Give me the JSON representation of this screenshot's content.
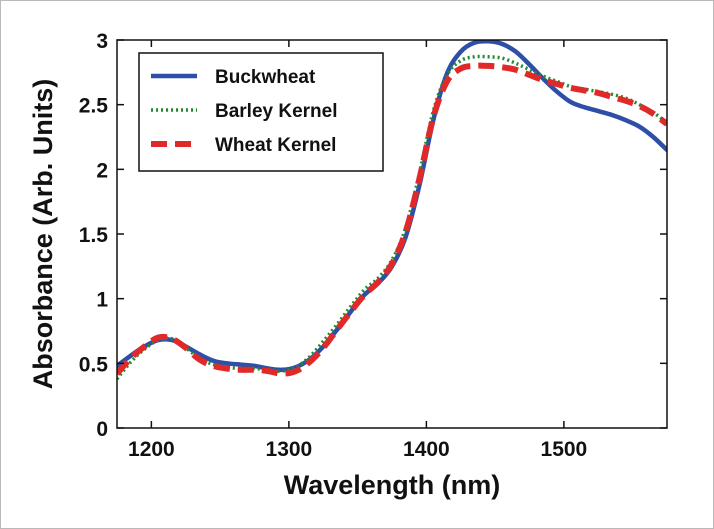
{
  "chart_data": {
    "type": "line",
    "title": "",
    "xlabel": "Wavelength (nm)",
    "ylabel": "Absorbance (Arb. Units)",
    "xlim": [
      1175,
      1575
    ],
    "ylim": [
      0,
      3
    ],
    "xticks": [
      1200,
      1300,
      1400,
      1500
    ],
    "xtick_labels": [
      "1200",
      "1300",
      "1400",
      "1500"
    ],
    "yticks": [
      0,
      0.5,
      1,
      1.5,
      2,
      2.5,
      3
    ],
    "ytick_labels": [
      "0",
      "0.5",
      "1",
      "1.5",
      "2",
      "2.5",
      "3"
    ],
    "grid": false,
    "legend_position": "top-left",
    "series": [
      {
        "name": "Buckwheat",
        "color": "#2e4fa8",
        "style": "solid",
        "x": [
          1175,
          1185,
          1195,
          1205,
          1215,
          1225,
          1235,
          1245,
          1255,
          1265,
          1275,
          1285,
          1295,
          1305,
          1315,
          1325,
          1335,
          1345,
          1355,
          1365,
          1375,
          1385,
          1395,
          1405,
          1415,
          1425,
          1435,
          1445,
          1455,
          1465,
          1475,
          1485,
          1495,
          1505,
          1515,
          1525,
          1535,
          1545,
          1555,
          1565,
          1575
        ],
        "y": [
          0.48,
          0.56,
          0.63,
          0.68,
          0.68,
          0.63,
          0.57,
          0.52,
          0.5,
          0.49,
          0.48,
          0.46,
          0.45,
          0.47,
          0.53,
          0.63,
          0.76,
          0.9,
          1.03,
          1.12,
          1.25,
          1.48,
          1.88,
          2.38,
          2.74,
          2.91,
          2.98,
          2.99,
          2.97,
          2.91,
          2.81,
          2.7,
          2.6,
          2.52,
          2.48,
          2.45,
          2.42,
          2.38,
          2.33,
          2.25,
          2.15
        ]
      },
      {
        "name": "Barley Kernel",
        "color": "#1f8a2e",
        "style": "dotted",
        "x": [
          1175,
          1185,
          1195,
          1205,
          1215,
          1225,
          1235,
          1245,
          1255,
          1265,
          1275,
          1285,
          1295,
          1305,
          1315,
          1325,
          1335,
          1345,
          1355,
          1365,
          1375,
          1385,
          1395,
          1405,
          1415,
          1425,
          1435,
          1445,
          1455,
          1465,
          1475,
          1485,
          1495,
          1505,
          1515,
          1525,
          1535,
          1545,
          1555,
          1565,
          1575
        ],
        "y": [
          0.38,
          0.51,
          0.61,
          0.68,
          0.69,
          0.62,
          0.54,
          0.49,
          0.47,
          0.46,
          0.46,
          0.45,
          0.44,
          0.47,
          0.55,
          0.67,
          0.8,
          0.94,
          1.07,
          1.16,
          1.3,
          1.55,
          1.97,
          2.45,
          2.73,
          2.84,
          2.87,
          2.87,
          2.86,
          2.82,
          2.77,
          2.72,
          2.68,
          2.64,
          2.62,
          2.6,
          2.58,
          2.55,
          2.5,
          2.44,
          2.36
        ]
      },
      {
        "name": "Wheat Kernel",
        "color": "#e02a2a",
        "style": "dashed",
        "x": [
          1175,
          1185,
          1195,
          1205,
          1215,
          1225,
          1235,
          1245,
          1255,
          1265,
          1275,
          1285,
          1295,
          1305,
          1315,
          1325,
          1335,
          1345,
          1355,
          1365,
          1375,
          1385,
          1395,
          1405,
          1415,
          1425,
          1435,
          1445,
          1455,
          1465,
          1475,
          1485,
          1495,
          1505,
          1515,
          1525,
          1535,
          1545,
          1555,
          1565,
          1575
        ],
        "y": [
          0.42,
          0.54,
          0.63,
          0.7,
          0.69,
          0.62,
          0.53,
          0.48,
          0.46,
          0.45,
          0.45,
          0.44,
          0.42,
          0.44,
          0.51,
          0.62,
          0.76,
          0.9,
          1.03,
          1.13,
          1.27,
          1.52,
          1.93,
          2.4,
          2.68,
          2.78,
          2.8,
          2.8,
          2.79,
          2.77,
          2.73,
          2.69,
          2.66,
          2.63,
          2.61,
          2.59,
          2.56,
          2.53,
          2.49,
          2.43,
          2.35
        ]
      }
    ]
  }
}
